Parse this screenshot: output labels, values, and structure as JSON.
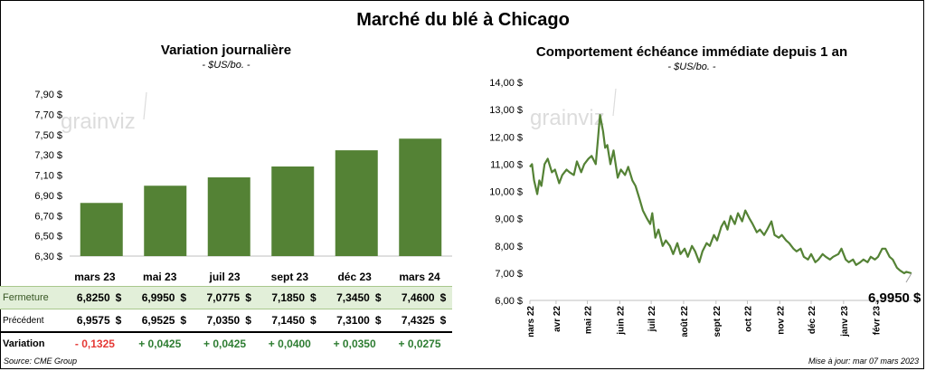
{
  "title": "Marché du blé à Chicago",
  "source": "Source: CME Group",
  "updated": "Mise à jour: mar 07 mars 2023",
  "watermark": "grainviz",
  "colors": {
    "bar": "#548235",
    "line": "#548235",
    "positive": "#2e7d32",
    "negative": "#e53935",
    "close_bg": "#e2efd9"
  },
  "left": {
    "title": "Variation  journalière",
    "unit": "- $US/bo. -"
  },
  "right": {
    "title": "Comportement  échéance immédiate depuis 1 an",
    "unit": "- $US/bo. -",
    "last_value": "6,9950 $"
  },
  "table": {
    "currency": "$",
    "contracts": [
      "mars 23",
      "mai 23",
      "juil 23",
      "sept 23",
      "déc 23",
      "mars 24"
    ],
    "close_label": "Fermeture",
    "close": [
      "6,8250",
      "6,9950",
      "7,0775",
      "7,1850",
      "7,3450",
      "7,4600"
    ],
    "prev_label": "Précédent",
    "previous": [
      "6,9575",
      "6,9525",
      "7,0350",
      "7,1450",
      "7,3100",
      "7,4325"
    ],
    "var_label": "Variation",
    "variation": [
      "- 0,1325",
      "+ 0,0425",
      "+ 0,0425",
      "+ 0,0400",
      "+ 0,0350",
      "+ 0,0275"
    ]
  },
  "chart_data": [
    {
      "type": "bar",
      "title": "Variation  journalière",
      "subtitle": "- $US/bo. -",
      "categories": [
        "mars 23",
        "mai 23",
        "juil 23",
        "sept 23",
        "déc 23",
        "mars 24"
      ],
      "values": [
        6.825,
        6.995,
        7.0775,
        7.185,
        7.345,
        7.46
      ],
      "ylim": [
        6.3,
        7.9
      ],
      "yticks": [
        "6,30 $",
        "6,50 $",
        "6,70 $",
        "6,90 $",
        "7,10 $",
        "7,30 $",
        "7,50 $",
        "7,70 $",
        "7,90 $"
      ],
      "grid": false
    },
    {
      "type": "line",
      "title": "Comportement  échéance immédiate depuis 1 an",
      "subtitle": "- $US/bo. -",
      "x_range": [
        "2022-03-07",
        "2023-03-07"
      ],
      "xticks": [
        {
          "label": "mars 22",
          "date": "2022-03-01"
        },
        {
          "label": "avr 22",
          "date": "2022-04-01"
        },
        {
          "label": "mai 22",
          "date": "2022-05-01"
        },
        {
          "label": "juin 22",
          "date": "2022-06-01"
        },
        {
          "label": "juil 22",
          "date": "2022-07-01"
        },
        {
          "label": "août 22",
          "date": "2022-08-01"
        },
        {
          "label": "sept 22",
          "date": "2022-09-01"
        },
        {
          "label": "oct 22",
          "date": "2022-10-01"
        },
        {
          "label": "nov 22",
          "date": "2022-11-01"
        },
        {
          "label": "déc 22",
          "date": "2022-12-01"
        },
        {
          "label": "janv 23",
          "date": "2023-01-01"
        },
        {
          "label": "févr 23",
          "date": "2023-02-01"
        }
      ],
      "ylim": [
        6.0,
        14.0
      ],
      "yticks": [
        "6,00 $",
        "7,00 $",
        "8,00 $",
        "9,00 $",
        "10,00 $",
        "11,00 $",
        "12,00 $",
        "13,00 $",
        "14,00 $"
      ],
      "series": [
        {
          "points": [
            [
              "2022-03-07",
              10.9
            ],
            [
              "2022-03-09",
              11.0
            ],
            [
              "2022-03-11",
              10.4
            ],
            [
              "2022-03-14",
              9.9
            ],
            [
              "2022-03-16",
              10.4
            ],
            [
              "2022-03-18",
              10.2
            ],
            [
              "2022-03-21",
              11.0
            ],
            [
              "2022-03-24",
              11.2
            ],
            [
              "2022-03-28",
              10.7
            ],
            [
              "2022-03-31",
              10.8
            ],
            [
              "2022-04-04",
              10.3
            ],
            [
              "2022-04-07",
              10.6
            ],
            [
              "2022-04-11",
              10.8
            ],
            [
              "2022-04-14",
              10.7
            ],
            [
              "2022-04-18",
              10.6
            ],
            [
              "2022-04-21",
              11.1
            ],
            [
              "2022-04-25",
              10.7
            ],
            [
              "2022-04-28",
              11.0
            ],
            [
              "2022-05-02",
              11.2
            ],
            [
              "2022-05-05",
              11.3
            ],
            [
              "2022-05-09",
              11.0
            ],
            [
              "2022-05-11",
              11.9
            ],
            [
              "2022-05-13",
              12.8
            ],
            [
              "2022-05-16",
              12.2
            ],
            [
              "2022-05-18",
              11.6
            ],
            [
              "2022-05-20",
              11.7
            ],
            [
              "2022-05-23",
              11.0
            ],
            [
              "2022-05-26",
              11.5
            ],
            [
              "2022-05-30",
              10.5
            ],
            [
              "2022-06-02",
              10.8
            ],
            [
              "2022-06-06",
              10.6
            ],
            [
              "2022-06-09",
              10.9
            ],
            [
              "2022-06-13",
              10.4
            ],
            [
              "2022-06-16",
              10.2
            ],
            [
              "2022-06-20",
              9.7
            ],
            [
              "2022-06-23",
              9.3
            ],
            [
              "2022-06-27",
              9.0
            ],
            [
              "2022-06-30",
              8.8
            ],
            [
              "2022-07-02",
              9.2
            ],
            [
              "2022-07-05",
              8.3
            ],
            [
              "2022-07-08",
              8.6
            ],
            [
              "2022-07-12",
              8.0
            ],
            [
              "2022-07-15",
              8.2
            ],
            [
              "2022-07-19",
              8.0
            ],
            [
              "2022-07-22",
              7.7
            ],
            [
              "2022-07-26",
              8.1
            ],
            [
              "2022-07-29",
              7.7
            ],
            [
              "2022-08-02",
              7.9
            ],
            [
              "2022-08-05",
              7.6
            ],
            [
              "2022-08-09",
              8.0
            ],
            [
              "2022-08-12",
              7.8
            ],
            [
              "2022-08-16",
              7.4
            ],
            [
              "2022-08-19",
              7.8
            ],
            [
              "2022-08-23",
              8.1
            ],
            [
              "2022-08-26",
              8.0
            ],
            [
              "2022-08-30",
              8.4
            ],
            [
              "2022-09-02",
              8.2
            ],
            [
              "2022-09-06",
              8.7
            ],
            [
              "2022-09-09",
              8.9
            ],
            [
              "2022-09-12",
              8.6
            ],
            [
              "2022-09-15",
              9.1
            ],
            [
              "2022-09-19",
              8.8
            ],
            [
              "2022-09-22",
              9.2
            ],
            [
              "2022-09-26",
              8.9
            ],
            [
              "2022-09-29",
              9.3
            ],
            [
              "2022-10-03",
              9.0
            ],
            [
              "2022-10-06",
              8.8
            ],
            [
              "2022-10-10",
              8.5
            ],
            [
              "2022-10-13",
              8.6
            ],
            [
              "2022-10-17",
              8.4
            ],
            [
              "2022-10-20",
              8.6
            ],
            [
              "2022-10-24",
              8.9
            ],
            [
              "2022-10-27",
              8.4
            ],
            [
              "2022-10-31",
              8.3
            ],
            [
              "2022-11-03",
              8.4
            ],
            [
              "2022-11-07",
              8.2
            ],
            [
              "2022-11-10",
              8.1
            ],
            [
              "2022-11-14",
              7.9
            ],
            [
              "2022-11-17",
              7.8
            ],
            [
              "2022-11-21",
              7.9
            ],
            [
              "2022-11-24",
              7.6
            ],
            [
              "2022-11-28",
              7.5
            ],
            [
              "2022-12-01",
              7.7
            ],
            [
              "2022-12-05",
              7.4
            ],
            [
              "2022-12-08",
              7.5
            ],
            [
              "2022-12-12",
              7.7
            ],
            [
              "2022-12-15",
              7.6
            ],
            [
              "2022-12-19",
              7.5
            ],
            [
              "2022-12-22",
              7.6
            ],
            [
              "2022-12-27",
              7.7
            ],
            [
              "2022-12-30",
              7.9
            ],
            [
              "2023-01-03",
              7.5
            ],
            [
              "2023-01-06",
              7.4
            ],
            [
              "2023-01-10",
              7.5
            ],
            [
              "2023-01-13",
              7.3
            ],
            [
              "2023-01-17",
              7.4
            ],
            [
              "2023-01-20",
              7.5
            ],
            [
              "2023-01-24",
              7.4
            ],
            [
              "2023-01-27",
              7.6
            ],
            [
              "2023-01-31",
              7.5
            ],
            [
              "2023-02-03",
              7.6
            ],
            [
              "2023-02-07",
              7.9
            ],
            [
              "2023-02-10",
              7.9
            ],
            [
              "2023-02-14",
              7.6
            ],
            [
              "2023-02-17",
              7.5
            ],
            [
              "2023-02-21",
              7.2
            ],
            [
              "2023-02-24",
              7.1
            ],
            [
              "2023-02-28",
              7.0
            ],
            [
              "2023-03-02",
              7.05
            ],
            [
              "2023-03-07",
              6.995
            ]
          ]
        }
      ]
    }
  ]
}
